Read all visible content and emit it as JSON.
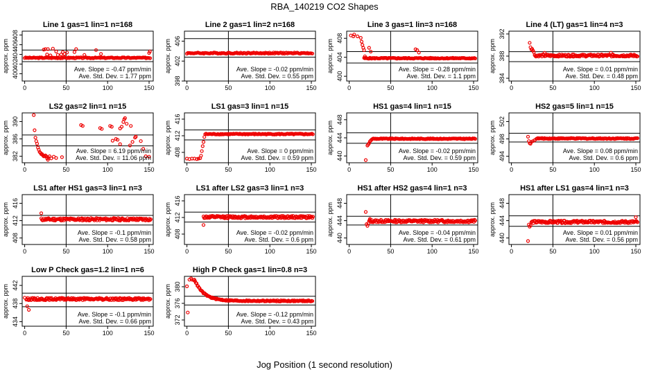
{
  "figure": {
    "title": "RBA_140219  CO2 Shapes",
    "xlabel": "Jog Position (1 second resolution)",
    "point_color": "#ee0000",
    "line_color": "#000000"
  },
  "chart_data": [
    {
      "type": "scatter",
      "title": "Line 1 gas=1 lin=1 n=168",
      "ylabel": "approx. ppm",
      "xlim": [
        -3,
        155
      ],
      "ylim": [
        398.5,
        408.8
      ],
      "yticks": [
        400,
        402,
        404,
        406,
        408
      ],
      "xticks": [
        0,
        50,
        100,
        150
      ],
      "vline": 50,
      "hlines": [
        404.9,
        402.5
      ],
      "slope_text": "Ave. Slope = -0.47 ppm/min",
      "std_text": "Ave. Std. Dev. = 1.77 ppm",
      "curve": {
        "base": 403.3,
        "noise": 0.1,
        "xstart": 0,
        "xend": 152,
        "step": 1.2
      },
      "extra": [
        [
          23,
          405
        ],
        [
          25,
          405.1
        ],
        [
          28,
          405.1
        ],
        [
          27,
          404
        ],
        [
          31,
          403.8
        ],
        [
          34,
          405.2
        ],
        [
          38,
          404.6
        ],
        [
          40,
          403.9
        ],
        [
          44,
          404
        ],
        [
          46,
          404.5
        ],
        [
          48,
          404.1
        ],
        [
          51,
          404.4
        ],
        [
          60,
          404.5
        ],
        [
          62,
          405.1
        ],
        [
          72,
          403.9
        ],
        [
          86,
          404.9
        ],
        [
          92,
          404.1
        ],
        [
          150,
          404.3
        ],
        [
          151,
          404.6
        ]
      ]
    },
    {
      "type": "scatter",
      "title": "Line 2 gas=1 lin=2 n=168",
      "ylabel": "approx. ppm",
      "xlim": [
        -3,
        155
      ],
      "ylim": [
        398,
        408
      ],
      "yticks": [
        398,
        402,
        406
      ],
      "xticks": [
        0,
        50,
        100,
        150
      ],
      "vline": 50,
      "hlines": [
        406.5,
        402.8
      ],
      "slope_text": "Ave. Slope = -0.02 ppm/min",
      "std_text": "Ave. Std. Dev. = 0.55 ppm",
      "curve": {
        "base": 403.6,
        "noise": 0.12,
        "xstart": 0,
        "xend": 152,
        "step": 1.2
      },
      "extra": []
    },
    {
      "type": "scatter",
      "title": "Line 3 gas=1 lin=3 n=168",
      "ylabel": "approx. ppm",
      "xlim": [
        -3,
        155
      ],
      "ylim": [
        399,
        409.5
      ],
      "yticks": [
        400,
        404,
        408
      ],
      "xticks": [
        0,
        50,
        100,
        150
      ],
      "vline": 50,
      "hlines": [
        405.2,
        402.8
      ],
      "slope_text": "Ave. Slope = -0.28 ppm/min",
      "std_text": "Ave. Std. Dev. = 1.1 ppm",
      "curve": {
        "base": 403.8,
        "noise": 0.1,
        "xstart": 18,
        "xend": 152,
        "step": 1.0
      },
      "extra": [
        [
          2,
          408.6
        ],
        [
          5,
          408.4
        ],
        [
          6,
          408.8
        ],
        [
          10,
          408.4
        ],
        [
          14,
          408.1
        ],
        [
          15,
          407.3
        ],
        [
          16,
          406.6
        ],
        [
          17,
          406
        ],
        [
          18,
          405.5
        ],
        [
          19,
          404.2
        ],
        [
          20,
          403.9
        ],
        [
          24,
          406
        ],
        [
          26,
          405.2
        ],
        [
          80,
          405.7
        ],
        [
          82,
          405.5
        ],
        [
          84,
          405
        ]
      ]
    },
    {
      "type": "scatter",
      "title": "Line 4 (LT) gas=1 lin=4 n=3",
      "ylabel": "approx. ppm",
      "xlim": [
        -3,
        155
      ],
      "ylim": [
        383.5,
        392.5
      ],
      "yticks": [
        384,
        388,
        392
      ],
      "xticks": [
        0,
        50,
        100,
        150
      ],
      "vline": 50,
      "hlines": [
        388.8,
        387
      ],
      "slope_text": "Ave. Slope = 0.01 ppm/min",
      "std_text": "Ave. Std. Dev. = 0.48 ppm",
      "curve": {
        "base": 388.1,
        "noise": 0.2,
        "xstart": 28,
        "xend": 152,
        "step": 0.8
      },
      "extra": [
        [
          22,
          390.4
        ],
        [
          23,
          389.6
        ],
        [
          24,
          389.2
        ],
        [
          25,
          389.3
        ],
        [
          26,
          389
        ],
        [
          27,
          388.7
        ],
        [
          40,
          388.6
        ],
        [
          75,
          388.3
        ],
        [
          120,
          388.6
        ]
      ]
    },
    {
      "type": "scatter",
      "title": "LS2 gas=2 lin=1 n=15",
      "ylabel": "approx. ppm",
      "xlim": [
        -3,
        155
      ],
      "ylim": [
        380.5,
        392
      ],
      "yticks": [
        382,
        386,
        390
      ],
      "xticks": [
        0,
        50,
        100,
        150
      ],
      "vline": 50,
      "hlines": [
        386.9,
        384.4
      ],
      "slope_text": "Ave. Slope = 6.19 ppm/min",
      "std_text": "Ave. Std. Dev. = 11.06 ppm",
      "curve": null,
      "extra": [
        [
          11,
          391.5
        ],
        [
          12,
          388
        ],
        [
          13,
          386.3
        ],
        [
          14,
          385.5
        ],
        [
          15,
          384.9
        ],
        [
          16,
          384
        ],
        [
          17,
          383.5
        ],
        [
          18,
          383
        ],
        [
          19,
          382.8
        ],
        [
          20,
          382.5
        ],
        [
          21,
          382.5
        ],
        [
          22,
          382.2
        ],
        [
          23,
          382
        ],
        [
          24,
          382
        ],
        [
          25,
          382.2
        ],
        [
          26,
          382
        ],
        [
          27,
          381.5
        ],
        [
          28,
          381.2
        ],
        [
          29,
          381.6
        ],
        [
          30,
          382
        ],
        [
          32,
          381.5
        ],
        [
          35,
          381.9
        ],
        [
          38,
          381.6
        ],
        [
          45,
          381.8
        ],
        [
          68,
          389.2
        ],
        [
          70,
          389
        ],
        [
          91,
          388.5
        ],
        [
          93,
          388.3
        ],
        [
          103,
          389
        ],
        [
          105,
          388.8
        ],
        [
          106,
          385.6
        ],
        [
          110,
          386
        ],
        [
          112,
          385.8
        ],
        [
          115,
          384.8
        ],
        [
          115,
          388.4
        ],
        [
          117,
          388.8
        ],
        [
          119,
          389.9
        ],
        [
          120,
          390.5
        ],
        [
          121,
          390.8
        ],
        [
          123,
          389.5
        ],
        [
          127,
          384.5
        ],
        [
          128,
          389
        ],
        [
          130,
          385.3
        ],
        [
          133,
          386.3
        ],
        [
          134,
          386.5
        ],
        [
          140,
          385.5
        ],
        [
          143,
          383.7
        ],
        [
          146,
          382
        ],
        [
          150,
          381.9
        ]
      ]
    },
    {
      "type": "scatter",
      "title": "LS1 gas=3 lin=1 n=15",
      "ylabel": "approx. ppm",
      "xlim": [
        -3,
        155
      ],
      "ylim": [
        405.5,
        417.5
      ],
      "yticks": [
        408,
        412,
        416
      ],
      "xticks": [
        0,
        50,
        100,
        150
      ],
      "vline": 50,
      "hlines": [
        413.4,
        411
      ],
      "slope_text": "Ave. Slope = 0 ppm/min",
      "std_text": "Ave. Std. Dev. = 0.59 ppm",
      "curve": {
        "base": 412.4,
        "noise": 0.12,
        "xstart": 22,
        "xend": 152,
        "step": 1.1
      },
      "extra": [
        [
          0,
          406.5
        ],
        [
          3,
          406.4
        ],
        [
          6,
          406.5
        ],
        [
          9,
          406.5
        ],
        [
          12,
          406.4
        ],
        [
          14,
          406.5
        ],
        [
          16,
          406.6
        ],
        [
          17,
          407.2
        ],
        [
          18,
          408.3
        ],
        [
          19,
          409.5
        ],
        [
          20,
          410.5
        ],
        [
          21,
          411.7
        ]
      ]
    },
    {
      "type": "scatter",
      "title": "HS1 gas=4 lin=1 n=15",
      "ylabel": "approx. ppm",
      "xlim": [
        -3,
        155
      ],
      "ylim": [
        438.5,
        449.5
      ],
      "yticks": [
        440,
        444,
        448
      ],
      "xticks": [
        0,
        50,
        100,
        150
      ],
      "vline": 50,
      "hlines": [
        445.1,
        442.8
      ],
      "slope_text": "Ave. Slope = -0.02 ppm/min",
      "std_text": "Ave. Std. Dev. = 0.59 ppm",
      "curve": {
        "base": 443.8,
        "noise": 0.1,
        "xstart": 28,
        "xend": 152,
        "step": 1.0
      },
      "extra": [
        [
          20,
          439.1
        ],
        [
          22,
          442.3
        ],
        [
          23,
          442.5
        ],
        [
          24,
          442.8
        ],
        [
          25,
          443.2
        ],
        [
          26,
          443.4
        ],
        [
          27,
          443.6
        ]
      ]
    },
    {
      "type": "scatter",
      "title": "HS2 gas=5 lin=1 n=15",
      "ylabel": "approx. ppm",
      "xlim": [
        -3,
        155
      ],
      "ylim": [
        492.5,
        504
      ],
      "yticks": [
        494,
        498,
        502
      ],
      "xticks": [
        0,
        50,
        100,
        150
      ],
      "vline": 50,
      "hlines": [
        499.3,
        497.3
      ],
      "slope_text": "Ave. Slope = 0.08 ppm/min",
      "std_text": "Ave. Std. Dev. = 0.6 ppm",
      "curve": {
        "base": 498.1,
        "noise": 0.12,
        "xstart": 30,
        "xend": 152,
        "step": 1.0
      },
      "extra": [
        [
          20,
          498.5
        ],
        [
          21,
          497.5
        ],
        [
          22,
          497
        ],
        [
          23,
          496.9
        ],
        [
          24,
          497.3
        ],
        [
          26,
          497.5
        ],
        [
          28,
          497.7
        ]
      ]
    },
    {
      "type": "scatter",
      "title": "LS1 after HS1 gas=3 lin=1 n=3",
      "ylabel": "approx. ppm",
      "xlim": [
        -3,
        155
      ],
      "ylim": [
        406.5,
        418
      ],
      "yticks": [
        408,
        412,
        416
      ],
      "xticks": [
        0,
        50,
        100,
        150
      ],
      "vline": 50,
      "hlines": [
        413.2,
        411
      ],
      "slope_text": "Ave. Slope = -0.1 ppm/min",
      "std_text": "Ave. Std. Dev. = 0.58 ppm",
      "curve": {
        "base": 412.3,
        "noise": 0.3,
        "xstart": 20,
        "xend": 152,
        "step": 0.8
      },
      "extra": [
        [
          20,
          413.7
        ]
      ]
    },
    {
      "type": "scatter",
      "title": "LS1 after LS2 gas=3 lin=1 n=3",
      "ylabel": "approx. ppm",
      "xlim": [
        -3,
        155
      ],
      "ylim": [
        405.5,
        417.5
      ],
      "yticks": [
        408,
        412,
        416
      ],
      "xticks": [
        0,
        50,
        100,
        150
      ],
      "vline": 50,
      "hlines": [
        413.3,
        410.9
      ],
      "slope_text": "Ave. Slope = -0.02 ppm/min",
      "std_text": "Ave. Std. Dev. = 0.6 ppm",
      "curve": {
        "base": 412.1,
        "noise": 0.3,
        "xstart": 20,
        "xend": 152,
        "step": 0.8
      },
      "extra": [
        [
          20,
          410.2
        ]
      ]
    },
    {
      "type": "scatter",
      "title": "HS1 after HS2 gas=4 lin=1 n=3",
      "ylabel": "approx. ppm",
      "xlim": [
        -3,
        155
      ],
      "ylim": [
        438.5,
        450
      ],
      "yticks": [
        440,
        444,
        448
      ],
      "xticks": [
        0,
        50,
        100,
        150
      ],
      "vline": 50,
      "hlines": [
        445,
        443
      ],
      "slope_text": "Ave. Slope = -0.04 ppm/min",
      "std_text": "Ave. Std. Dev. = 0.61 ppm",
      "curve": {
        "base": 443.9,
        "noise": 0.3,
        "xstart": 24,
        "xend": 152,
        "step": 0.8
      },
      "extra": [
        [
          20,
          446
        ],
        [
          21,
          443.2
        ],
        [
          22,
          442.8
        ],
        [
          23,
          443.4
        ],
        [
          25,
          444.4
        ]
      ]
    },
    {
      "type": "scatter",
      "title": "HS1 after LS1 gas=4 lin=1 n=3",
      "ylabel": "approx. ppm",
      "xlim": [
        -3,
        155
      ],
      "ylim": [
        438.5,
        450
      ],
      "yticks": [
        440,
        444,
        448
      ],
      "xticks": [
        0,
        50,
        100,
        150
      ],
      "vline": 50,
      "hlines": [
        445.1,
        442.7
      ],
      "slope_text": "Ave. Slope = 0.01 ppm/min",
      "std_text": "Ave. Std. Dev. = 0.56 ppm",
      "curve": {
        "base": 443.7,
        "noise": 0.3,
        "xstart": 24,
        "xend": 152,
        "step": 0.8
      },
      "extra": [
        [
          20,
          439.3
        ],
        [
          21,
          443.1
        ],
        [
          22,
          442.6
        ],
        [
          23,
          442.9
        ],
        [
          150,
          444.8
        ]
      ]
    },
    {
      "type": "scatter",
      "title": "Low P Check gas=1.2 lin=1 n=6",
      "ylabel": "approx. ppm",
      "xlim": [
        -3,
        155
      ],
      "ylim": [
        433,
        444
      ],
      "yticks": [
        434,
        438,
        442
      ],
      "xticks": [
        0,
        50,
        100,
        150
      ],
      "vline": 50,
      "hlines": [
        440.3,
        437.3
      ],
      "slope_text": "Ave. Slope = -0.1 ppm/min",
      "std_text": "Ave. Std. Dev. = 0.66 ppm",
      "curve": {
        "base": 439,
        "noise": 0.25,
        "xstart": 2,
        "xend": 152,
        "step": 0.8
      },
      "extra": [
        [
          3,
          437.4
        ],
        [
          5,
          436.6
        ],
        [
          0,
          439.3
        ]
      ]
    },
    {
      "type": "scatter",
      "title": "High P Check gas=1 lin=0.8 n=3",
      "ylabel": "approx. ppm",
      "xlim": [
        -3,
        155
      ],
      "ylim": [
        370.5,
        382.5
      ],
      "yticks": [
        372,
        376,
        380
      ],
      "xticks": [
        0,
        50,
        100,
        150
      ],
      "vline": 50,
      "hlines": [
        377.7,
        375.6
      ],
      "slope_text": "Ave. Slope = -0.12 ppm/min",
      "std_text": "Ave. Std. Dev. = 0.43 ppm",
      "curve": {
        "decay": {
          "start": 381.8,
          "end": 376.6,
          "tau": 11
        },
        "noise": 0.15,
        "xstart": 9,
        "xend": 152,
        "step": 0.9
      },
      "extra": [
        [
          0,
          380.1
        ],
        [
          1,
          373.8
        ],
        [
          3,
          381.7
        ],
        [
          5,
          382
        ],
        [
          6,
          381.7
        ],
        [
          8,
          381.6
        ]
      ]
    }
  ]
}
